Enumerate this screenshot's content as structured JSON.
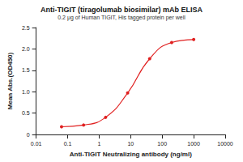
{
  "chart_data": {
    "type": "line",
    "title": "Anti-TIGIT (tiragolumab biosimilar) mAb ELISA",
    "subtitle": "0.2 μg of Human TIGIT, His tagged protein per well",
    "x_label": "Anti-TIGIT Neutralizing antibody (ng/ml)",
    "y_label": "Mean Abs.(OD450)",
    "x": [
      0.064,
      0.32,
      1.6,
      8,
      40,
      200,
      1000
    ],
    "values": [
      0.18,
      0.22,
      0.4,
      0.97,
      1.77,
      2.15,
      2.22
    ],
    "color": "#e02020",
    "marker": "circle",
    "line_style": "solid",
    "log": "x",
    "xlim": [
      0.01,
      10000
    ],
    "xticks": [
      0.01,
      0.1,
      1,
      10,
      100,
      1000,
      10000
    ],
    "ylim": [
      0,
      2.5
    ],
    "yticks": [
      0,
      0.5,
      {
        "value": 1,
        "label": "1.0"
      },
      1.5,
      {
        "value": 2,
        "label": "2.0"
      },
      2.5
    ],
    "grid": false
  }
}
